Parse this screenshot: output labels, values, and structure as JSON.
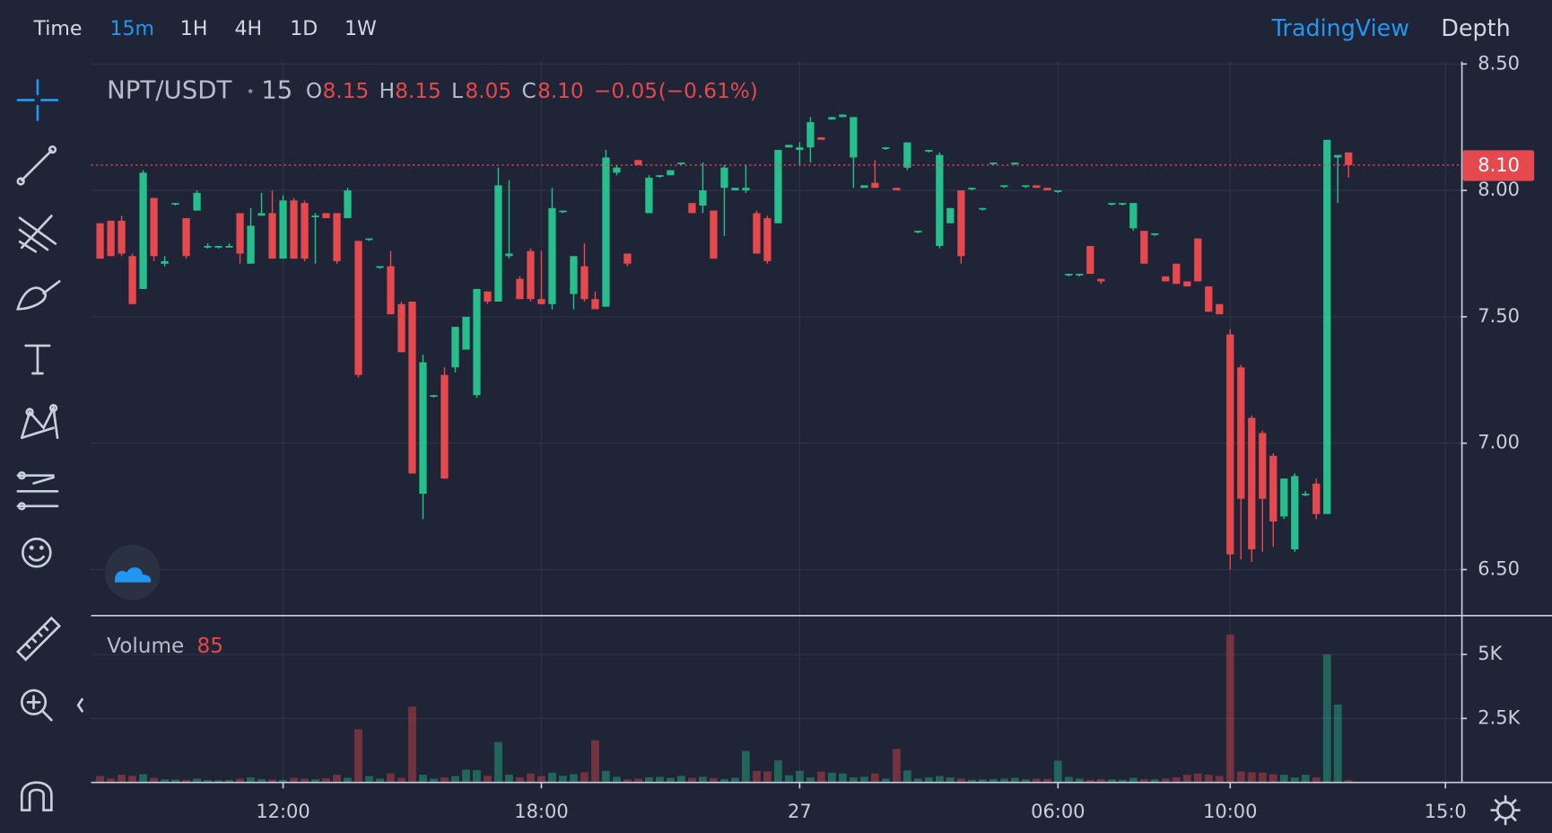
{
  "toolbar": {
    "time": "Time",
    "intervals": [
      "15m",
      "1H",
      "4H",
      "1D",
      "1W"
    ],
    "tradingview": "TradingView",
    "depth": "Depth"
  },
  "legend": {
    "symbol": "NPT/USDT",
    "interval": "15",
    "open_label": "O",
    "open": "8.15",
    "high_label": "H",
    "high": "8.15",
    "low_label": "L",
    "low": "8.05",
    "close_label": "C",
    "close": "8.10",
    "change": "−0.05",
    "change_percent": "(−0.61%)"
  },
  "chart_data": {
    "type": "candlestick",
    "up_color": "#26bf8c",
    "down_color": "#e5484d",
    "x": [
      7.75,
      8,
      8.25,
      8.5,
      8.75,
      9,
      9.25,
      9.5,
      9.75,
      10,
      10.25,
      10.5,
      10.75,
      11,
      11.25,
      11.5,
      11.75,
      12,
      12.25,
      12.5,
      12.75,
      13,
      13.25,
      13.5,
      13.75,
      14,
      14.25,
      14.5,
      14.75,
      15,
      15.25,
      15.5,
      15.75,
      16,
      16.25,
      16.5,
      16.75,
      17,
      17.25,
      17.5,
      17.75,
      18,
      18.25,
      18.5,
      18.75,
      19,
      19.25,
      19.5,
      19.75,
      20,
      20.25,
      20.5,
      20.75,
      21,
      21.25,
      21.5,
      21.75,
      22,
      22.25,
      22.5,
      22.75,
      23,
      23.25,
      23.5,
      23.75,
      24,
      24.25,
      24.5,
      24.75,
      25,
      25.25,
      25.5,
      25.75,
      26,
      26.25,
      26.5,
      26.75,
      27,
      27.25,
      27.5,
      27.75,
      28,
      28.25,
      28.5,
      28.75,
      29,
      29.25,
      29.5,
      29.75,
      30,
      30.25,
      30.5,
      30.75,
      31,
      31.25,
      31.5,
      31.75,
      32,
      32.25,
      32.5,
      32.75,
      33,
      33.25,
      33.5,
      33.75,
      34,
      34.25,
      34.5,
      34.75,
      35,
      35.25,
      35.5,
      35.75,
      36,
      36.25,
      36.5,
      36.75
    ],
    "open": [
      7.87,
      7.88,
      7.88,
      7.74,
      7.61,
      7.97,
      7.71,
      7.95,
      7.89,
      7.92,
      7.78,
      7.78,
      7.78,
      7.91,
      7.71,
      7.9,
      7.91,
      7.73,
      7.96,
      7.95,
      7.9,
      7.91,
      7.91,
      7.89,
      7.8,
      7.81,
      7.7,
      7.7,
      7.55,
      7.56,
      6.8,
      7.19,
      7.27,
      7.3,
      7.37,
      7.19,
      7.6,
      7.56,
      7.74,
      7.65,
      7.76,
      7.57,
      7.55,
      7.92,
      7.59,
      7.7,
      7.57,
      7.54,
      8.07,
      7.75,
      8.12,
      7.91,
      8.06,
      8.06,
      8.11,
      7.95,
      7.94,
      7.92,
      8.01,
      8,
      8,
      7.91,
      7.89,
      7.87,
      8.17,
      8.16,
      8.17,
      8.21,
      8.28,
      8.29,
      8.13,
      8.01,
      8.03,
      8.17,
      8.01,
      8.09,
      7.84,
      8.16,
      7.78,
      7.87,
      8,
      8.01,
      7.93,
      8.11,
      8.02,
      8.11,
      8.02,
      8.02,
      8.01,
      8,
      7.67,
      7.67,
      7.78,
      7.65,
      7.95,
      7.95,
      7.85,
      7.84,
      7.83,
      7.66,
      7.71,
      7.64,
      7.81,
      7.62,
      7.55,
      7.43,
      7.3,
      7.1,
      7.04,
      6.95,
      6.71,
      6.58,
      6.8,
      6.84,
      6.72,
      8.13,
      8.15
    ],
    "high": [
      7.87,
      7.88,
      7.9,
      7.75,
      8.08,
      7.97,
      7.74,
      7.95,
      7.89,
      8,
      7.79,
      7.78,
      7.79,
      7.91,
      7.93,
      7.99,
      8,
      7.98,
      7.97,
      7.96,
      7.91,
      7.91,
      7.91,
      8.01,
      7.8,
      7.81,
      7.7,
      7.76,
      7.56,
      7.56,
      7.35,
      7.19,
      7.3,
      7.46,
      7.5,
      7.61,
      7.6,
      8.09,
      8.04,
      7.66,
      7.77,
      7.76,
      8.01,
      7.92,
      7.74,
      7.79,
      7.6,
      8.16,
      8.1,
      7.75,
      8.12,
      8.06,
      8.06,
      8.08,
      8.11,
      7.95,
      8.11,
      7.92,
      8.1,
      8.01,
      8.1,
      7.92,
      7.9,
      8.16,
      8.18,
      8.19,
      8.29,
      8.21,
      8.29,
      8.3,
      8.29,
      8.02,
      8.12,
      8.17,
      8.01,
      8.19,
      7.84,
      8.16,
      8.15,
      7.93,
      8,
      8.01,
      7.93,
      8.11,
      8.02,
      8.11,
      8.02,
      8.02,
      8.01,
      8,
      7.67,
      7.67,
      7.78,
      7.65,
      7.95,
      7.95,
      7.95,
      7.84,
      7.83,
      7.66,
      7.71,
      7.64,
      7.81,
      7.62,
      7.55,
      7.45,
      7.31,
      7.11,
      7.05,
      6.96,
      6.86,
      6.88,
      6.81,
      6.86,
      8.2,
      8.14,
      8.15
    ],
    "low": [
      7.73,
      7.74,
      7.74,
      7.55,
      7.61,
      7.72,
      7.7,
      7.94,
      7.73,
      7.92,
      7.77,
      7.77,
      7.78,
      7.71,
      7.71,
      7.9,
      7.73,
      7.73,
      7.73,
      7.72,
      7.71,
      7.89,
      7.71,
      7.89,
      7.26,
      7.8,
      7.69,
      7.51,
      7.36,
      6.88,
      6.7,
      7.18,
      6.86,
      7.28,
      7.37,
      7.18,
      7.55,
      7.56,
      7.73,
      7.57,
      7.56,
      7.55,
      7.53,
      7.91,
      7.53,
      7.56,
      7.53,
      7.54,
      8.06,
      7.7,
      8.1,
      7.91,
      8.05,
      8.06,
      8.1,
      7.91,
      7.91,
      7.73,
      7.82,
      8,
      7.99,
      7.75,
      7.71,
      7.87,
      8.17,
      8.1,
      8.11,
      8.2,
      8.28,
      8.29,
      8.01,
      8.01,
      8.01,
      8.16,
      8,
      8.08,
      7.83,
      8.15,
      7.77,
      7.87,
      7.71,
      8,
      7.92,
      8.1,
      8.01,
      8.1,
      8.01,
      8.01,
      8,
      7.99,
      7.66,
      7.66,
      7.67,
      7.63,
      7.94,
      7.94,
      7.84,
      7.71,
      7.82,
      7.64,
      7.63,
      7.62,
      7.64,
      7.52,
      7.51,
      6.5,
      6.54,
      6.53,
      6.57,
      6.59,
      6.7,
      6.57,
      6.79,
      6.7,
      6.72,
      7.95,
      8.05
    ],
    "close": [
      7.73,
      7.74,
      7.75,
      7.55,
      8.07,
      7.74,
      7.72,
      7.95,
      7.74,
      7.99,
      7.78,
      7.78,
      7.78,
      7.75,
      7.86,
      7.91,
      7.73,
      7.96,
      7.73,
      7.73,
      7.9,
      7.89,
      7.72,
      8,
      7.27,
      7.81,
      7.7,
      7.51,
      7.36,
      6.88,
      7.32,
      7.19,
      6.86,
      7.46,
      7.5,
      7.61,
      7.56,
      8.02,
      7.75,
      7.57,
      7.57,
      7.55,
      7.93,
      7.92,
      7.74,
      7.57,
      7.53,
      8.13,
      8.09,
      7.71,
      8.1,
      8.05,
      8.06,
      8.08,
      8.11,
      7.91,
      8,
      7.73,
      8.09,
      8.01,
      8.01,
      7.75,
      7.72,
      8.16,
      8.18,
      8.17,
      8.27,
      8.2,
      8.29,
      8.3,
      8.29,
      8.02,
      8.01,
      8.17,
      8,
      8.19,
      7.84,
      8.16,
      8.14,
      7.93,
      7.74,
      8.01,
      7.93,
      8.11,
      8.02,
      8.11,
      8.02,
      8.01,
      8,
      8,
      7.67,
      7.67,
      7.67,
      7.64,
      7.95,
      7.95,
      7.95,
      7.71,
      7.83,
      7.64,
      7.63,
      7.62,
      7.64,
      7.52,
      7.51,
      6.56,
      6.78,
      6.58,
      6.78,
      6.69,
      6.86,
      6.87,
      6.8,
      6.72,
      8.2,
      8.14,
      8.1
    ],
    "xlim": [
      7.54,
      39.36
    ],
    "xticks": [
      {
        "value": 12,
        "label": "12:00"
      },
      {
        "value": 18,
        "label": "18:00"
      },
      {
        "value": 24,
        "label": "27"
      },
      {
        "value": 30,
        "label": "06:00"
      },
      {
        "value": 34,
        "label": "10:00"
      },
      {
        "value": 39,
        "label": "15:0"
      }
    ],
    "ylim": [
      6.32,
      8.51
    ],
    "yticks": [
      {
        "value": 6.5,
        "label": "6.50"
      },
      {
        "value": 7,
        "label": "7.00"
      },
      {
        "value": 7.5,
        "label": "7.50"
      },
      {
        "value": 8,
        "label": "8.00"
      },
      {
        "value": 8.5,
        "label": "8.50"
      }
    ],
    "last_price": {
      "value": 8.1,
      "label": "8.10"
    },
    "volume_label": "Volume",
    "volume": [
      250,
      150,
      300,
      260,
      320,
      180,
      120,
      110,
      100,
      150,
      90,
      80,
      100,
      150,
      200,
      130,
      110,
      100,
      180,
      150,
      120,
      160,
      300,
      180,
      2080,
      250,
      150,
      350,
      180,
      2960,
      300,
      150,
      200,
      250,
      500,
      480,
      260,
      1580,
      300,
      200,
      350,
      250,
      380,
      260,
      320,
      400,
      1650,
      450,
      220,
      120,
      150,
      200,
      220,
      180,
      260,
      180,
      220,
      170,
      130,
      180,
      1230,
      450,
      430,
      860,
      280,
      450,
      200,
      420,
      380,
      350,
      200,
      220,
      350,
      150,
      1310,
      470,
      150,
      200,
      250,
      200,
      150,
      100,
      120,
      130,
      150,
      180,
      120,
      150,
      140,
      850,
      220,
      150,
      100,
      130,
      120,
      100,
      180,
      130,
      120,
      150,
      200,
      300,
      350,
      300,
      250,
      5780,
      430,
      400,
      380,
      320,
      300,
      200,
      300,
      200,
      5000,
      3040,
      85
    ],
    "volume_ylim": [
      0,
      6500
    ],
    "volume_yticks": [
      {
        "value": 2500,
        "label": "2.5K"
      },
      {
        "value": 5000,
        "label": "5K"
      }
    ],
    "grid": true
  }
}
